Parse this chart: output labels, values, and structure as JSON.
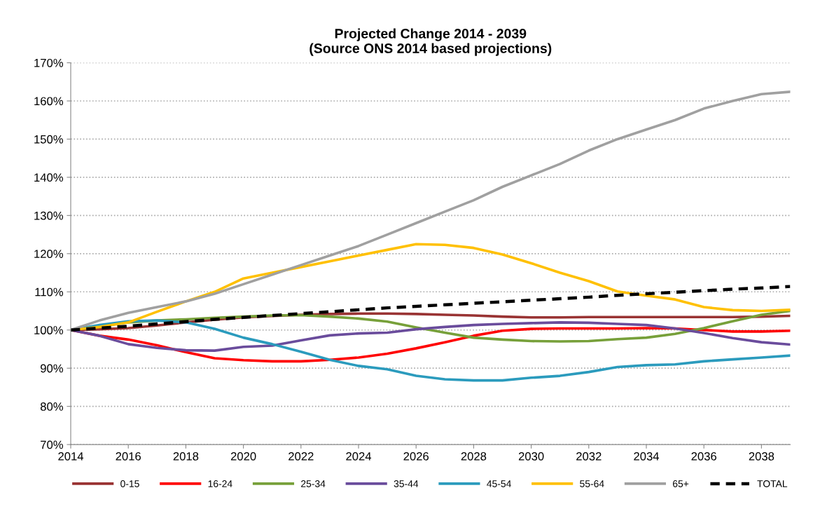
{
  "chart_data": {
    "type": "line",
    "title": "Projected Change 2014 - 2039\n(Source ONS 2014 based projections)",
    "x": [
      2014,
      2015,
      2016,
      2017,
      2018,
      2019,
      2020,
      2021,
      2022,
      2023,
      2024,
      2025,
      2026,
      2027,
      2028,
      2029,
      2030,
      2031,
      2032,
      2033,
      2034,
      2035,
      2036,
      2037,
      2038,
      2039
    ],
    "series": [
      {
        "name": "0-15",
        "color": "#993333",
        "values": [
          100,
          100.2,
          100.5,
          101.2,
          102,
          102.7,
          103.3,
          103.7,
          104,
          104.2,
          104.3,
          104.3,
          104.2,
          104,
          103.8,
          103.5,
          103.3,
          103.3,
          103.4,
          103.4,
          103.4,
          103.4,
          103.4,
          103.4,
          103.5,
          103.7
        ]
      },
      {
        "name": "16-24",
        "color": "#ff0000",
        "values": [
          100,
          98.5,
          97.5,
          96,
          94.2,
          92.6,
          92.1,
          91.8,
          91.8,
          92.2,
          92.8,
          93.8,
          95.2,
          96.8,
          98.5,
          99.8,
          100.3,
          100.4,
          100.4,
          100.4,
          100.5,
          100.4,
          100,
          99.6,
          99.6,
          99.8
        ]
      },
      {
        "name": "25-34",
        "color": "#77a03a",
        "values": [
          100,
          101,
          102,
          102.5,
          102.8,
          103.2,
          103.5,
          103.8,
          103.9,
          103.5,
          103,
          102.2,
          100.7,
          99.3,
          98,
          97.5,
          97.1,
          97,
          97.1,
          97.6,
          98,
          99,
          100.5,
          102.3,
          104,
          105
        ]
      },
      {
        "name": "35-44",
        "color": "#6a4c9c",
        "values": [
          100,
          98.5,
          96.3,
          95.3,
          94.7,
          94.6,
          95.6,
          95.9,
          97.3,
          98.6,
          99.1,
          99.3,
          100.2,
          100.8,
          101.3,
          101.6,
          101.8,
          102,
          101.9,
          101.6,
          101.3,
          100.4,
          99.2,
          97.9,
          96.8,
          96.2
        ]
      },
      {
        "name": "45-54",
        "color": "#2b9bbd",
        "values": [
          100,
          101.3,
          102.3,
          102.5,
          102,
          100.3,
          98,
          96.3,
          94.3,
          92.2,
          90.6,
          89.7,
          88,
          87.1,
          86.8,
          86.8,
          87.5,
          88,
          89,
          90.3,
          90.8,
          91,
          91.8,
          92.3,
          92.8,
          93.3
        ]
      },
      {
        "name": "55-64",
        "color": "#ffc000",
        "values": [
          100,
          100.8,
          102,
          104.8,
          107.5,
          110,
          113.5,
          115,
          116.5,
          118,
          119.5,
          121,
          122.5,
          122.3,
          121.5,
          119.8,
          117.5,
          115,
          112.8,
          110.1,
          109,
          108,
          106,
          105.2,
          105,
          105.3
        ]
      },
      {
        "name": "65+",
        "color": "#a0a0a0",
        "values": [
          100,
          102.5,
          104.5,
          106,
          107.5,
          109.5,
          112,
          114.5,
          117,
          119.5,
          122,
          125,
          128,
          131,
          134,
          137.5,
          140.5,
          143.5,
          147,
          150,
          152.5,
          155,
          158,
          160,
          161.8,
          162.4
        ]
      },
      {
        "name": "TOTAL",
        "color": "#000000",
        "line_style": "dashed",
        "values": [
          100,
          100.5,
          101,
          101.6,
          102.2,
          102.8,
          103.3,
          103.8,
          104.3,
          104.8,
          105.3,
          105.8,
          106.2,
          106.6,
          107,
          107.4,
          107.8,
          108.2,
          108.6,
          109.1,
          109.5,
          109.9,
          110.3,
          110.7,
          111,
          111.4
        ]
      }
    ],
    "xlim": [
      2014,
      2039
    ],
    "xticks": [
      2014,
      2016,
      2018,
      2020,
      2022,
      2024,
      2026,
      2028,
      2030,
      2032,
      2034,
      2036,
      2038
    ],
    "ylim": [
      70,
      170
    ],
    "yticks": [
      {
        "value": 70,
        "label": "70%"
      },
      {
        "value": 80,
        "label": "80%"
      },
      {
        "value": 90,
        "label": "90%"
      },
      {
        "value": 100,
        "label": "100%"
      },
      {
        "value": 110,
        "label": "110%"
      },
      {
        "value": 120,
        "label": "120%"
      },
      {
        "value": 130,
        "label": "130%"
      },
      {
        "value": 140,
        "label": "140%"
      },
      {
        "value": 150,
        "label": "150%"
      },
      {
        "value": 160,
        "label": "160%"
      },
      {
        "value": 170,
        "label": "170%"
      }
    ],
    "grid": "y",
    "legend": "bottom",
    "line_style": "solid",
    "marker": "none"
  }
}
